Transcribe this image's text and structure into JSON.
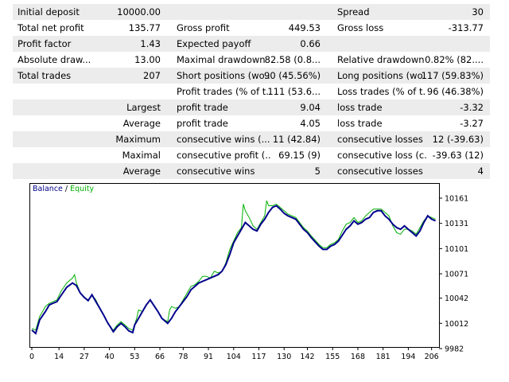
{
  "report": {
    "rows": [
      {
        "shade": true,
        "c1": "Initial deposit",
        "v1": "10000.00",
        "c2": "",
        "v2": "",
        "c3": "Spread",
        "v3": "30"
      },
      {
        "shade": false,
        "c1": "Total net profit",
        "v1": "135.77",
        "c2": "Gross profit",
        "v2": "449.53",
        "c3": "Gross loss",
        "v3": "-313.77"
      },
      {
        "shade": true,
        "c1": "Profit factor",
        "v1": "1.43",
        "c2": "Expected payoff",
        "v2": "0.66",
        "c3": "",
        "v3": ""
      },
      {
        "shade": false,
        "c1": "Absolute draw...",
        "v1": "13.00",
        "c2": "Maximal drawdown",
        "v2": "82.58 (0.8...",
        "c3": "Relative drawdown",
        "v3": "0.82% (82...."
      },
      {
        "shade": true,
        "c1": "Total trades",
        "v1": "207",
        "c2": "Short positions (wo...",
        "v2": "90 (45.56%)",
        "c3": "Long positions (wo...",
        "v3": "117 (59.83%)"
      },
      {
        "shade": false,
        "c1": "",
        "v1": "",
        "c2": "Profit trades (% of t...",
        "v2": "111 (53.6...",
        "c3": "Loss trades (% of t...",
        "v3": "96 (46.38%)"
      },
      {
        "shade": true,
        "c1": "",
        "v1": "Largest",
        "c2": "profit trade",
        "v2": "9.04",
        "c3": "loss trade",
        "v3": "-3.32"
      },
      {
        "shade": false,
        "c1": "",
        "v1": "Average",
        "c2": "profit trade",
        "v2": "4.05",
        "c3": "loss trade",
        "v3": "-3.27"
      },
      {
        "shade": true,
        "c1": "",
        "v1": "Maximum",
        "c2": "consecutive wins (...",
        "v2": "11 (42.84)",
        "c3": "consecutive losses ...",
        "v3": "12 (-39.63)"
      },
      {
        "shade": false,
        "c1": "",
        "v1": "Maximal",
        "c2": "consecutive profit (...",
        "v2": "69.15 (9)",
        "c3": "consecutive loss (c...",
        "v3": "-39.63 (12)"
      },
      {
        "shade": true,
        "c1": "",
        "v1": "Average",
        "c2": "consecutive wins",
        "v2": "5",
        "c3": "consecutive losses",
        "v3": "4"
      }
    ]
  },
  "chart_data": {
    "type": "line",
    "legend": {
      "balance": "Balance",
      "separator": " / ",
      "equity": "Equity",
      "position": "top-left"
    },
    "colors": {
      "balance": "#00008b",
      "equity": "#00b000",
      "frame": "#000000",
      "grid": "#c8c8c8"
    },
    "x_ticks": [
      "0",
      "14",
      "27",
      "40",
      "53",
      "66",
      "78",
      "91",
      "104",
      "117",
      "130",
      "142",
      "155",
      "168",
      "181",
      "194",
      "206"
    ],
    "y_ticks": [
      "10161",
      "10131",
      "10101",
      "10071",
      "10042",
      "10012",
      "9982"
    ],
    "xlim": [
      0,
      209
    ],
    "ylim": [
      9982,
      10161
    ],
    "series": [
      {
        "name": "Balance",
        "points": [
          [
            0,
            10004
          ],
          [
            2,
            10000
          ],
          [
            4,
            10016
          ],
          [
            7,
            10026
          ],
          [
            9,
            10034
          ],
          [
            11,
            10036
          ],
          [
            13,
            10038
          ],
          [
            15,
            10045
          ],
          [
            18,
            10055
          ],
          [
            21,
            10060
          ],
          [
            23,
            10057
          ],
          [
            25,
            10048
          ],
          [
            27,
            10043
          ],
          [
            29,
            10039
          ],
          [
            31,
            10046
          ],
          [
            33,
            10038
          ],
          [
            35,
            10030
          ],
          [
            37,
            10022
          ],
          [
            39,
            10013
          ],
          [
            41,
            10006
          ],
          [
            42,
            10002
          ],
          [
            44,
            10008
          ],
          [
            46,
            10012
          ],
          [
            48,
            10008
          ],
          [
            50,
            10003
          ],
          [
            52,
            10001
          ],
          [
            53,
            10010
          ],
          [
            55,
            10018
          ],
          [
            57,
            10026
          ],
          [
            59,
            10034
          ],
          [
            61,
            10040
          ],
          [
            63,
            10033
          ],
          [
            65,
            10026
          ],
          [
            67,
            10018
          ],
          [
            70,
            10012
          ],
          [
            72,
            10018
          ],
          [
            74,
            10026
          ],
          [
            76,
            10032
          ],
          [
            78,
            10038
          ],
          [
            80,
            10044
          ],
          [
            82,
            10052
          ],
          [
            84,
            10056
          ],
          [
            86,
            10060
          ],
          [
            88,
            10062
          ],
          [
            90,
            10064
          ],
          [
            92,
            10066
          ],
          [
            94,
            10068
          ],
          [
            96,
            10070
          ],
          [
            98,
            10074
          ],
          [
            100,
            10082
          ],
          [
            102,
            10094
          ],
          [
            104,
            10108
          ],
          [
            106,
            10116
          ],
          [
            108,
            10124
          ],
          [
            110,
            10132
          ],
          [
            112,
            10128
          ],
          [
            114,
            10124
          ],
          [
            116,
            10122
          ],
          [
            118,
            10130
          ],
          [
            120,
            10136
          ],
          [
            122,
            10144
          ],
          [
            124,
            10150
          ],
          [
            126,
            10152
          ],
          [
            128,
            10148
          ],
          [
            130,
            10143
          ],
          [
            132,
            10140
          ],
          [
            134,
            10138
          ],
          [
            136,
            10136
          ],
          [
            138,
            10130
          ],
          [
            140,
            10124
          ],
          [
            142,
            10120
          ],
          [
            144,
            10114
          ],
          [
            146,
            10109
          ],
          [
            148,
            10104
          ],
          [
            150,
            10100
          ],
          [
            152,
            10100
          ],
          [
            154,
            10104
          ],
          [
            156,
            10106
          ],
          [
            158,
            10110
          ],
          [
            160,
            10117
          ],
          [
            162,
            10124
          ],
          [
            164,
            10128
          ],
          [
            166,
            10134
          ],
          [
            168,
            10130
          ],
          [
            170,
            10132
          ],
          [
            172,
            10136
          ],
          [
            174,
            10138
          ],
          [
            176,
            10144
          ],
          [
            178,
            10146
          ],
          [
            180,
            10146
          ],
          [
            182,
            10140
          ],
          [
            184,
            10136
          ],
          [
            186,
            10130
          ],
          [
            188,
            10126
          ],
          [
            190,
            10124
          ],
          [
            192,
            10128
          ],
          [
            194,
            10124
          ],
          [
            196,
            10120
          ],
          [
            198,
            10116
          ],
          [
            200,
            10122
          ],
          [
            202,
            10132
          ],
          [
            204,
            10140
          ],
          [
            206,
            10136
          ],
          [
            208,
            10134
          ]
        ]
      },
      {
        "name": "Equity",
        "points": [
          [
            0,
            10006
          ],
          [
            2,
            10004
          ],
          [
            4,
            10020
          ],
          [
            7,
            10032
          ],
          [
            9,
            10036
          ],
          [
            11,
            10038
          ],
          [
            13,
            10040
          ],
          [
            15,
            10050
          ],
          [
            18,
            10060
          ],
          [
            21,
            10066
          ],
          [
            22,
            10070
          ],
          [
            23,
            10060
          ],
          [
            25,
            10048
          ],
          [
            27,
            10043
          ],
          [
            29,
            10040
          ],
          [
            31,
            10046
          ],
          [
            33,
            10040
          ],
          [
            35,
            10030
          ],
          [
            37,
            10022
          ],
          [
            39,
            10013
          ],
          [
            41,
            10006
          ],
          [
            42,
            10004
          ],
          [
            44,
            10010
          ],
          [
            46,
            10014
          ],
          [
            48,
            10010
          ],
          [
            50,
            10006
          ],
          [
            52,
            10004
          ],
          [
            54,
            10018
          ],
          [
            55,
            10028
          ],
          [
            57,
            10026
          ],
          [
            59,
            10034
          ],
          [
            61,
            10040
          ],
          [
            63,
            10033
          ],
          [
            65,
            10026
          ],
          [
            67,
            10018
          ],
          [
            70,
            10014
          ],
          [
            71,
            10028
          ],
          [
            72,
            10032
          ],
          [
            74,
            10030
          ],
          [
            76,
            10032
          ],
          [
            78,
            10040
          ],
          [
            80,
            10048
          ],
          [
            82,
            10056
          ],
          [
            84,
            10058
          ],
          [
            86,
            10062
          ],
          [
            88,
            10068
          ],
          [
            90,
            10068
          ],
          [
            92,
            10066
          ],
          [
            94,
            10074
          ],
          [
            96,
            10072
          ],
          [
            98,
            10074
          ],
          [
            100,
            10084
          ],
          [
            102,
            10100
          ],
          [
            104,
            10110
          ],
          [
            106,
            10120
          ],
          [
            108,
            10126
          ],
          [
            109,
            10154
          ],
          [
            110,
            10146
          ],
          [
            112,
            10138
          ],
          [
            114,
            10128
          ],
          [
            116,
            10124
          ],
          [
            118,
            10132
          ],
          [
            120,
            10140
          ],
          [
            121,
            10158
          ],
          [
            122,
            10152
          ],
          [
            124,
            10152
          ],
          [
            126,
            10154
          ],
          [
            128,
            10150
          ],
          [
            130,
            10146
          ],
          [
            132,
            10142
          ],
          [
            134,
            10140
          ],
          [
            136,
            10138
          ],
          [
            138,
            10132
          ],
          [
            140,
            10126
          ],
          [
            142,
            10122
          ],
          [
            144,
            10116
          ],
          [
            146,
            10111
          ],
          [
            148,
            10106
          ],
          [
            150,
            10102
          ],
          [
            152,
            10102
          ],
          [
            154,
            10106
          ],
          [
            156,
            10108
          ],
          [
            158,
            10112
          ],
          [
            160,
            10122
          ],
          [
            162,
            10130
          ],
          [
            164,
            10132
          ],
          [
            166,
            10138
          ],
          [
            168,
            10132
          ],
          [
            170,
            10134
          ],
          [
            172,
            10140
          ],
          [
            174,
            10144
          ],
          [
            176,
            10148
          ],
          [
            178,
            10148
          ],
          [
            180,
            10148
          ],
          [
            182,
            10144
          ],
          [
            184,
            10140
          ],
          [
            186,
            10128
          ],
          [
            188,
            10120
          ],
          [
            190,
            10118
          ],
          [
            192,
            10124
          ],
          [
            194,
            10124
          ],
          [
            196,
            10122
          ],
          [
            198,
            10118
          ],
          [
            200,
            10126
          ],
          [
            202,
            10134
          ],
          [
            204,
            10140
          ],
          [
            206,
            10138
          ],
          [
            208,
            10136
          ]
        ]
      }
    ]
  }
}
